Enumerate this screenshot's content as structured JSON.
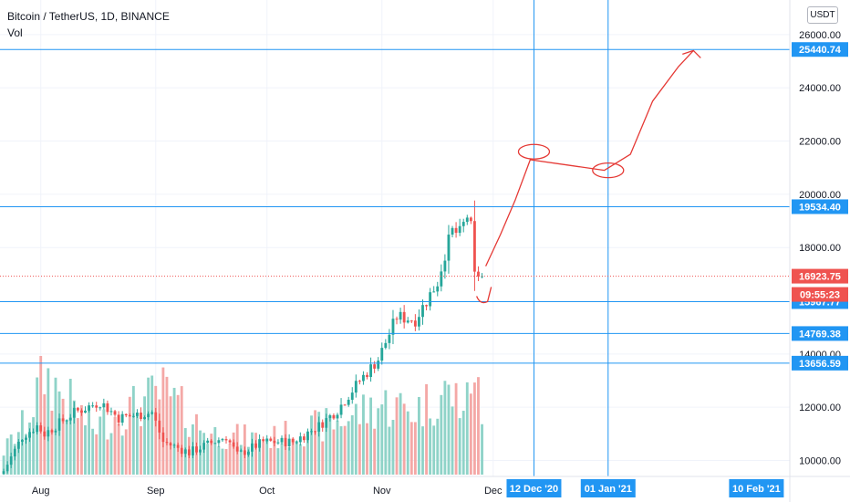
{
  "header": {
    "symbol": "Bitcoin / TetherUS, 1D, BINANCE",
    "indicator": "Vol",
    "currency_button": "USDT"
  },
  "colors": {
    "up": "#26a69a",
    "down": "#ef5350",
    "up_vol": "#8fd3c8",
    "down_vol": "#f4a8a6",
    "level_line": "#2196f3",
    "drawing": "#e53935",
    "grid": "#f0f3fa",
    "axis_text": "#131722"
  },
  "chart_data": {
    "type": "candlestick",
    "symbol": "BTC/USDT",
    "interval": "1D",
    "x_range": [
      "2020-07-21",
      "2021-02-19"
    ],
    "y_range": [
      9400,
      27300
    ],
    "y_ticks": [
      "10000.00",
      "12000.00",
      "14000.00",
      "18000.00",
      "20000.00",
      "22000.00",
      "24000.00",
      "26000.00"
    ],
    "x_ticks": [
      {
        "date": "2020-08-01",
        "label": "Aug"
      },
      {
        "date": "2020-09-01",
        "label": "Sep"
      },
      {
        "date": "2020-10-01",
        "label": "Oct"
      },
      {
        "date": "2020-11-01",
        "label": "Nov"
      },
      {
        "date": "2020-12-01",
        "label": "Dec"
      }
    ],
    "current_price": {
      "value": 16923.75,
      "label": "16923.75",
      "countdown": "09:55:23"
    },
    "horizontal_levels": [
      {
        "value": 25440.74,
        "label": "25440.74"
      },
      {
        "value": 19534.4,
        "label": "19534.40"
      },
      {
        "value": 15967.77,
        "label": "15967.77"
      },
      {
        "value": 14769.38,
        "label": "14769.38"
      },
      {
        "value": 13656.59,
        "label": "13656.59"
      }
    ],
    "vertical_lines": [
      {
        "date": "2020-12-12",
        "label": "12 Dec '20"
      },
      {
        "date": "2021-01-01",
        "label": "01 Jan '21"
      }
    ],
    "extra_date_labels": [
      {
        "date": "2021-02-10",
        "label": "10 Feb '21"
      }
    ],
    "close_anchors": [
      {
        "date": "2020-07-22",
        "close": 9600
      },
      {
        "date": "2020-07-27",
        "close": 10900
      },
      {
        "date": "2020-07-31",
        "close": 11300
      },
      {
        "date": "2020-08-02",
        "close": 11000
      },
      {
        "date": "2020-08-10",
        "close": 11800
      },
      {
        "date": "2020-08-17",
        "close": 12200
      },
      {
        "date": "2020-08-22",
        "close": 11600
      },
      {
        "date": "2020-08-31",
        "close": 11800
      },
      {
        "date": "2020-09-03",
        "close": 10700
      },
      {
        "date": "2020-09-10",
        "close": 10300
      },
      {
        "date": "2020-09-20",
        "close": 10900
      },
      {
        "date": "2020-09-23",
        "close": 10200
      },
      {
        "date": "2020-09-30",
        "close": 10700
      },
      {
        "date": "2020-10-08",
        "close": 10700
      },
      {
        "date": "2020-10-15",
        "close": 11300
      },
      {
        "date": "2020-10-20",
        "close": 11900
      },
      {
        "date": "2020-10-26",
        "close": 13000
      },
      {
        "date": "2020-10-31",
        "close": 13800
      },
      {
        "date": "2020-11-05",
        "close": 15400
      },
      {
        "date": "2020-11-10",
        "close": 15300
      },
      {
        "date": "2020-11-16",
        "close": 16700
      },
      {
        "date": "2020-11-18",
        "close": 17800
      },
      {
        "date": "2020-11-20",
        "close": 18600
      },
      {
        "date": "2020-11-22",
        "close": 18500
      },
      {
        "date": "2020-11-24",
        "close": 19200
      },
      {
        "date": "2020-11-25",
        "close": 18700
      },
      {
        "date": "2020-11-26",
        "close": 16900
      },
      {
        "date": "2020-11-27",
        "close": 17000
      },
      {
        "date": "2020-11-28",
        "close": 16924
      }
    ],
    "volume_anchors": [
      {
        "date": "2020-07-22",
        "value": 0.2
      },
      {
        "date": "2020-07-28",
        "value": 0.45
      },
      {
        "date": "2020-08-02",
        "value": 0.85
      },
      {
        "date": "2020-08-15",
        "value": 0.4
      },
      {
        "date": "2020-09-03",
        "value": 0.7
      },
      {
        "date": "2020-09-15",
        "value": 0.35
      },
      {
        "date": "2020-10-01",
        "value": 0.3
      },
      {
        "date": "2020-10-20",
        "value": 0.45
      },
      {
        "date": "2020-11-01",
        "value": 0.6
      },
      {
        "date": "2020-11-10",
        "value": 0.55
      },
      {
        "date": "2020-11-18",
        "value": 0.7
      },
      {
        "date": "2020-11-24",
        "value": 0.6
      },
      {
        "date": "2020-11-26",
        "value": 1.0
      },
      {
        "date": "2020-11-28",
        "value": 0.35
      }
    ],
    "hand_drawn_annotation": {
      "color": "#e53935",
      "path": [
        {
          "date": "2020-11-29",
          "price": 17300
        },
        {
          "date": "2020-12-03",
          "price": 18500
        },
        {
          "date": "2020-12-07",
          "price": 19800
        },
        {
          "date": "2020-12-11",
          "price": 21300
        },
        {
          "date": "2020-12-21",
          "price": 21100
        },
        {
          "date": "2020-12-31",
          "price": 20900
        },
        {
          "date": "2021-01-07",
          "price": 21500
        },
        {
          "date": "2021-01-13",
          "price": 23500
        },
        {
          "date": "2021-01-20",
          "price": 24800
        },
        {
          "date": "2021-01-24",
          "price": 25400
        }
      ],
      "ellipses": [
        {
          "date": "2020-12-12",
          "price": 21600
        },
        {
          "date": "2021-01-01",
          "price": 20900
        }
      ]
    }
  }
}
